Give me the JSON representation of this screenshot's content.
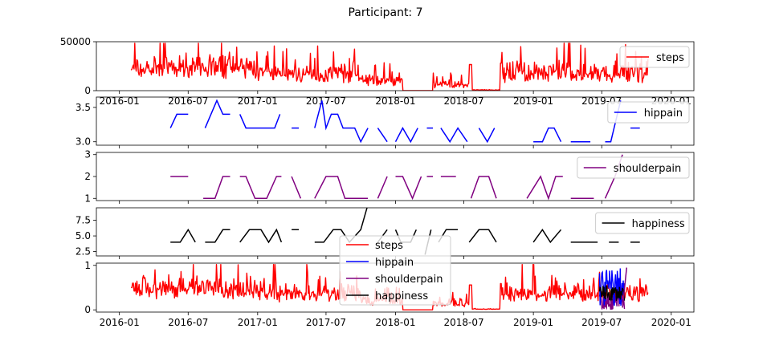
{
  "figure": {
    "title": "Participant: 7"
  },
  "chart_data": [
    {
      "type": "line",
      "series": [
        {
          "name": "steps",
          "color": "#ff0000",
          "style": "dense-noise"
        }
      ],
      "y_ticks": [
        "0",
        "50000"
      ],
      "ylim": [
        0,
        50000
      ],
      "x_ticks": [
        "2016-01",
        "2016-07",
        "2017-01",
        "2017-07",
        "2018-01",
        "2018-07",
        "2019-01",
        "2019-07",
        "2020-01"
      ],
      "legend": "upper right"
    },
    {
      "type": "line",
      "series": [
        {
          "name": "hippain",
          "color": "#0000ff",
          "values": [
            [
              "2016-05-15",
              3.2
            ],
            [
              "2016-06-01",
              3.4
            ],
            [
              "2016-07-01",
              3.4
            ],
            null,
            [
              "2016-08-15",
              3.2
            ],
            [
              "2016-09-15",
              3.6
            ],
            [
              "2016-10-01",
              3.4
            ],
            [
              "2016-10-20",
              3.4
            ],
            null,
            [
              "2016-11-15",
              3.4
            ],
            [
              "2016-12-01",
              3.2
            ],
            [
              "2017-01-15",
              3.2
            ],
            [
              "2017-02-15",
              3.2
            ],
            [
              "2017-03-01",
              3.4
            ],
            null,
            [
              "2017-04-01",
              3.2
            ],
            [
              "2017-04-20",
              3.2
            ],
            null,
            [
              "2017-06-01",
              3.2
            ],
            [
              "2017-06-20",
              3.6
            ],
            [
              "2017-07-01",
              3.2
            ],
            [
              "2017-07-15",
              3.4
            ],
            [
              "2017-08-01",
              3.4
            ],
            [
              "2017-08-15",
              3.2
            ],
            [
              "2017-09-15",
              3.2
            ],
            [
              "2017-10-01",
              3.0
            ],
            [
              "2017-10-20",
              3.2
            ],
            null,
            [
              "2017-11-15",
              3.2
            ],
            [
              "2017-12-10",
              3.0
            ],
            null,
            [
              "2018-01-01",
              3.0
            ],
            [
              "2018-01-20",
              3.2
            ],
            [
              "2018-02-10",
              3.0
            ],
            [
              "2018-03-01",
              3.2
            ],
            null,
            [
              "2018-03-25",
              3.2
            ],
            [
              "2018-04-10",
              3.2
            ],
            null,
            [
              "2018-05-01",
              3.2
            ],
            [
              "2018-05-25",
              3.0
            ],
            [
              "2018-06-15",
              3.2
            ],
            [
              "2018-07-10",
              3.0
            ],
            null,
            [
              "2018-08-10",
              3.2
            ],
            [
              "2018-09-01",
              3.0
            ],
            [
              "2018-09-20",
              3.2
            ],
            null,
            [
              "2019-01-01",
              3.0
            ],
            [
              "2019-01-25",
              3.0
            ],
            [
              "2019-02-10",
              3.2
            ],
            [
              "2019-02-25",
              3.2
            ],
            [
              "2019-03-15",
              3.0
            ],
            null,
            [
              "2019-04-10",
              3.0
            ],
            [
              "2019-06-01",
              3.0
            ],
            null,
            [
              "2019-07-10",
              3.0
            ],
            [
              "2019-07-25",
              3.0
            ],
            [
              "2019-08-20",
              3.6
            ],
            null,
            [
              "2019-09-15",
              3.2
            ],
            [
              "2019-10-10",
              3.2
            ]
          ]
        }
      ],
      "y_ticks": [
        "3.0",
        "3.5"
      ],
      "ylim": [
        2.95,
        3.65
      ],
      "legend": "upper right"
    },
    {
      "type": "line",
      "series": [
        {
          "name": "shoulderpain",
          "color": "#800080",
          "values": [
            [
              "2016-05-15",
              2
            ],
            [
              "2016-07-01",
              2
            ],
            null,
            [
              "2016-08-10",
              1
            ],
            [
              "2016-09-10",
              1
            ],
            [
              "2016-10-01",
              2
            ],
            [
              "2016-10-20",
              2
            ],
            null,
            [
              "2016-11-15",
              2
            ],
            [
              "2016-12-01",
              2
            ],
            [
              "2016-12-25",
              1
            ],
            [
              "2017-01-25",
              1
            ],
            [
              "2017-02-20",
              2
            ],
            [
              "2017-03-05",
              2
            ],
            null,
            [
              "2017-04-01",
              2
            ],
            [
              "2017-04-25",
              1
            ],
            null,
            [
              "2017-06-01",
              1
            ],
            [
              "2017-07-01",
              2
            ],
            [
              "2017-08-01",
              2
            ],
            [
              "2017-08-20",
              1
            ],
            [
              "2017-10-20",
              1
            ],
            null,
            [
              "2017-11-15",
              1
            ],
            [
              "2017-12-10",
              2
            ],
            null,
            [
              "2018-01-01",
              2
            ],
            [
              "2018-01-20",
              2
            ],
            [
              "2018-02-15",
              1
            ],
            [
              "2018-03-10",
              2
            ],
            null,
            [
              "2018-03-25",
              2
            ],
            [
              "2018-04-10",
              2
            ],
            null,
            [
              "2018-05-01",
              2
            ],
            [
              "2018-06-10",
              2
            ],
            null,
            [
              "2018-07-20",
              1
            ],
            [
              "2018-08-10",
              2
            ],
            [
              "2018-09-05",
              2
            ],
            [
              "2018-09-25",
              1
            ],
            null,
            [
              "2018-12-15",
              1
            ],
            [
              "2019-01-20",
              2
            ],
            [
              "2019-02-10",
              1
            ],
            [
              "2019-03-01",
              2
            ],
            [
              "2019-03-20",
              2
            ],
            null,
            [
              "2019-04-10",
              1
            ],
            [
              "2019-06-10",
              1
            ],
            null,
            [
              "2019-07-10",
              1
            ],
            [
              "2019-08-05",
              2
            ],
            [
              "2019-08-25",
              3
            ]
          ]
        }
      ],
      "y_ticks": [
        "1",
        "2",
        "3"
      ],
      "ylim": [
        0.9,
        3.1
      ],
      "legend": "upper right"
    },
    {
      "type": "line",
      "series": [
        {
          "name": "happiness",
          "color": "#000000",
          "values": [
            [
              "2016-05-15",
              4
            ],
            [
              "2016-06-10",
              4
            ],
            [
              "2016-07-01",
              6
            ],
            [
              "2016-07-20",
              4
            ],
            null,
            [
              "2016-08-15",
              4
            ],
            [
              "2016-09-10",
              4
            ],
            [
              "2016-10-01",
              6
            ],
            [
              "2016-10-20",
              6
            ],
            null,
            [
              "2016-11-15",
              4
            ],
            [
              "2016-12-10",
              6
            ],
            [
              "2017-01-10",
              6
            ],
            [
              "2017-01-30",
              4
            ],
            [
              "2017-02-20",
              6
            ],
            [
              "2017-03-05",
              4
            ],
            null,
            [
              "2017-04-01",
              6
            ],
            [
              "2017-04-20",
              6
            ],
            null,
            [
              "2017-06-01",
              4
            ],
            [
              "2017-06-25",
              4
            ],
            [
              "2017-07-20",
              6
            ],
            [
              "2017-08-10",
              6
            ],
            [
              "2017-09-01",
              4
            ],
            [
              "2017-10-01",
              6
            ],
            [
              "2017-10-20",
              10
            ],
            null,
            [
              "2017-11-15",
              4
            ],
            [
              "2017-12-10",
              6
            ],
            null,
            [
              "2018-01-01",
              6
            ],
            [
              "2018-01-15",
              4
            ],
            [
              "2018-02-10",
              4
            ],
            [
              "2018-02-25",
              6
            ],
            null,
            [
              "2018-03-20",
              2
            ],
            [
              "2018-04-05",
              6
            ],
            null,
            [
              "2018-04-25",
              4
            ],
            [
              "2018-05-15",
              6
            ],
            [
              "2018-06-15",
              6
            ],
            null,
            [
              "2018-07-15",
              4
            ],
            [
              "2018-08-10",
              6
            ],
            [
              "2018-09-05",
              6
            ],
            [
              "2018-09-25",
              4
            ],
            null,
            [
              "2019-01-01",
              4
            ],
            [
              "2019-01-25",
              6
            ],
            [
              "2019-02-15",
              4
            ],
            [
              "2019-03-15",
              6
            ],
            null,
            [
              "2019-04-10",
              4
            ],
            [
              "2019-06-20",
              4
            ],
            null,
            [
              "2019-07-20",
              4
            ],
            [
              "2019-08-15",
              4
            ],
            null,
            [
              "2019-09-15",
              4
            ],
            [
              "2019-10-10",
              4
            ]
          ]
        }
      ],
      "y_ticks": [
        "2.5",
        "5.0",
        "7.5"
      ],
      "ylim": [
        1.8,
        9.5
      ],
      "legend": "upper right"
    },
    {
      "type": "line",
      "series": [
        {
          "name": "steps",
          "color": "#ff0000",
          "style": "dense-noise"
        },
        {
          "name": "hippain",
          "color": "#0000ff"
        },
        {
          "name": "shoulderpain",
          "color": "#800080"
        },
        {
          "name": "happiness",
          "color": "#000000"
        }
      ],
      "y_ticks": [
        "0",
        "1"
      ],
      "ylim": [
        -0.05,
        1.05
      ],
      "x_ticks": [
        "2016-01",
        "2016-07",
        "2017-01",
        "2017-07",
        "2018-01",
        "2018-07",
        "2019-01",
        "2019-07",
        "2020-01"
      ],
      "legend": "lower center"
    }
  ]
}
